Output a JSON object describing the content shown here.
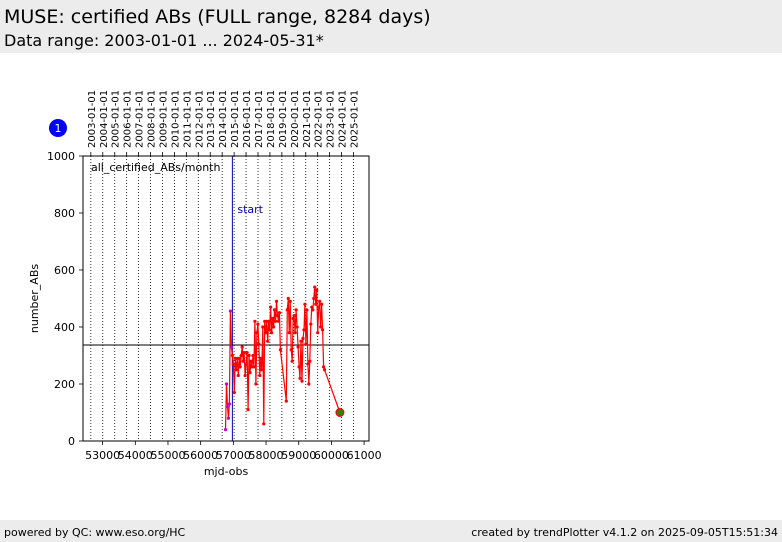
{
  "header": {
    "title": "MUSE: certified ABs (FULL range, 8284 days)",
    "subtitle": "Data range: 2003-01-01 ... 2024-05-31*"
  },
  "footer": {
    "left": "powered by QC: www.eso.org/HC",
    "right": "created by trendPlotter v4.1.2 on 2025-09-05T15:51:34"
  },
  "panel_badge": "1",
  "chart_data": {
    "type": "line",
    "annotation": "all_certified_ABs/month",
    "xlabel": "mjd-obs",
    "ylabel": "number_ABs",
    "xlim": [
      52400,
      61150
    ],
    "ylim": [
      0,
      1000
    ],
    "x_ticks": [
      53000,
      54000,
      55000,
      56000,
      57000,
      58000,
      59000,
      60000,
      61000
    ],
    "y_ticks": [
      0,
      200,
      400,
      600,
      800,
      1000
    ],
    "top_axis_dates": [
      {
        "label": "2003-01-01",
        "mjd": 52640
      },
      {
        "label": "2004-01-01",
        "mjd": 53005
      },
      {
        "label": "2005-01-01",
        "mjd": 53371
      },
      {
        "label": "2006-01-01",
        "mjd": 53736
      },
      {
        "label": "2007-01-01",
        "mjd": 54101
      },
      {
        "label": "2008-01-01",
        "mjd": 54466
      },
      {
        "label": "2009-01-01",
        "mjd": 54832
      },
      {
        "label": "2010-01-01",
        "mjd": 55197
      },
      {
        "label": "2011-01-01",
        "mjd": 55562
      },
      {
        "label": "2012-01-01",
        "mjd": 55927
      },
      {
        "label": "2013-01-01",
        "mjd": 56293
      },
      {
        "label": "2014-01-01",
        "mjd": 56658
      },
      {
        "label": "2015-01-01",
        "mjd": 57023
      },
      {
        "label": "2016-01-01",
        "mjd": 57388
      },
      {
        "label": "2017-01-01",
        "mjd": 57754
      },
      {
        "label": "2018-01-01",
        "mjd": 58119
      },
      {
        "label": "2019-01-01",
        "mjd": 58484
      },
      {
        "label": "2020-01-01",
        "mjd": 58849
      },
      {
        "label": "2021-01-01",
        "mjd": 59215
      },
      {
        "label": "2022-01-01",
        "mjd": 59580
      },
      {
        "label": "2023-01-01",
        "mjd": 59945
      },
      {
        "label": "2024-01-01",
        "mjd": 60310
      },
      {
        "label": "2025-01-01",
        "mjd": 60676
      }
    ],
    "start_marker": {
      "label": "start",
      "mjd": 56970
    },
    "reference_line_y": 337,
    "pre_start_series": [
      {
        "x": 56760,
        "y": 40
      },
      {
        "x": 56790,
        "y": 200
      },
      {
        "x": 56820,
        "y": 120
      },
      {
        "x": 56850,
        "y": 80
      },
      {
        "x": 56880,
        "y": 130
      },
      {
        "x": 56910,
        "y": 456
      },
      {
        "x": 56940,
        "y": 330
      }
    ],
    "series": [
      {
        "x": 56970,
        "y": 300
      },
      {
        "x": 57000,
        "y": 270
      },
      {
        "x": 57030,
        "y": 170
      },
      {
        "x": 57060,
        "y": 290
      },
      {
        "x": 57090,
        "y": 250
      },
      {
        "x": 57120,
        "y": 290
      },
      {
        "x": 57150,
        "y": 230
      },
      {
        "x": 57180,
        "y": 290
      },
      {
        "x": 57210,
        "y": 260
      },
      {
        "x": 57240,
        "y": 300
      },
      {
        "x": 57270,
        "y": 330
      },
      {
        "x": 57300,
        "y": 280
      },
      {
        "x": 57330,
        "y": 310
      },
      {
        "x": 57360,
        "y": 230
      },
      {
        "x": 57390,
        "y": 270
      },
      {
        "x": 57420,
        "y": 310
      },
      {
        "x": 57450,
        "y": 110
      },
      {
        "x": 57480,
        "y": 300
      },
      {
        "x": 57510,
        "y": 240
      },
      {
        "x": 57540,
        "y": 280
      },
      {
        "x": 57570,
        "y": 260
      },
      {
        "x": 57600,
        "y": 300
      },
      {
        "x": 57630,
        "y": 260
      },
      {
        "x": 57660,
        "y": 420
      },
      {
        "x": 57690,
        "y": 200
      },
      {
        "x": 57720,
        "y": 380
      },
      {
        "x": 57750,
        "y": 410
      },
      {
        "x": 57780,
        "y": 340
      },
      {
        "x": 57810,
        "y": 230
      },
      {
        "x": 57840,
        "y": 290
      },
      {
        "x": 57870,
        "y": 250
      },
      {
        "x": 57900,
        "y": 400
      },
      {
        "x": 57930,
        "y": 60
      },
      {
        "x": 57960,
        "y": 420
      },
      {
        "x": 57990,
        "y": 380
      },
      {
        "x": 58020,
        "y": 420
      },
      {
        "x": 58050,
        "y": 350
      },
      {
        "x": 58080,
        "y": 420
      },
      {
        "x": 58110,
        "y": 390
      },
      {
        "x": 58140,
        "y": 470
      },
      {
        "x": 58170,
        "y": 380
      },
      {
        "x": 58200,
        "y": 430
      },
      {
        "x": 58230,
        "y": 400
      },
      {
        "x": 58260,
        "y": 460
      },
      {
        "x": 58290,
        "y": 420
      },
      {
        "x": 58320,
        "y": 490
      },
      {
        "x": 58350,
        "y": 440
      },
      {
        "x": 58380,
        "y": 420
      },
      {
        "x": 58410,
        "y": 450
      },
      {
        "x": 58440,
        "y": 320
      },
      {
        "x": 58620,
        "y": 140
      },
      {
        "x": 58650,
        "y": 460
      },
      {
        "x": 58680,
        "y": 500
      },
      {
        "x": 58710,
        "y": 380
      },
      {
        "x": 58740,
        "y": 490
      },
      {
        "x": 58770,
        "y": 320
      },
      {
        "x": 58800,
        "y": 280
      },
      {
        "x": 58830,
        "y": 430
      },
      {
        "x": 58860,
        "y": 440
      },
      {
        "x": 58890,
        "y": 380
      },
      {
        "x": 58920,
        "y": 460
      },
      {
        "x": 58950,
        "y": 400
      },
      {
        "x": 58980,
        "y": 330
      },
      {
        "x": 59010,
        "y": 260
      },
      {
        "x": 59040,
        "y": 220
      },
      {
        "x": 59070,
        "y": 350
      },
      {
        "x": 59100,
        "y": 210
      },
      {
        "x": 59130,
        "y": 360
      },
      {
        "x": 59160,
        "y": 390
      },
      {
        "x": 59190,
        "y": 480
      },
      {
        "x": 59220,
        "y": 340
      },
      {
        "x": 59250,
        "y": 460
      },
      {
        "x": 59280,
        "y": 270
      },
      {
        "x": 59310,
        "y": 200
      },
      {
        "x": 59340,
        "y": 280
      },
      {
        "x": 59370,
        "y": 410
      },
      {
        "x": 59400,
        "y": 470
      },
      {
        "x": 59430,
        "y": 460
      },
      {
        "x": 59460,
        "y": 500
      },
      {
        "x": 59490,
        "y": 540
      },
      {
        "x": 59520,
        "y": 480
      },
      {
        "x": 59550,
        "y": 530
      },
      {
        "x": 59580,
        "y": 380
      },
      {
        "x": 59610,
        "y": 470
      },
      {
        "x": 59640,
        "y": 490
      },
      {
        "x": 59670,
        "y": 400
      },
      {
        "x": 59700,
        "y": 480
      },
      {
        "x": 59730,
        "y": 390
      },
      {
        "x": 59760,
        "y": 260
      },
      {
        "x": 59790,
        "y": 250
      }
    ],
    "last_point": {
      "x": 60260,
      "y": 100
    },
    "colors": {
      "series": "#ff0000",
      "pre_start": "#cc00cc",
      "start_line": "#0000aa",
      "last_point_fill": "#3a7a00",
      "badge": "#0000ff"
    }
  }
}
